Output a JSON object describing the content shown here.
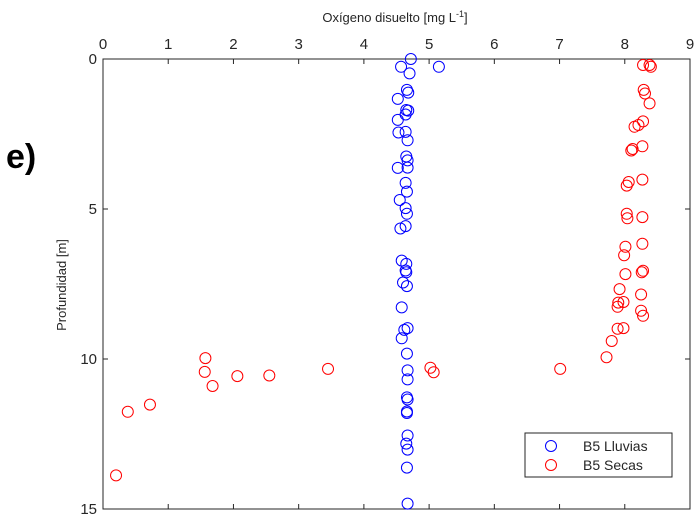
{
  "panel_label": "e)",
  "chart_data": {
    "type": "scatter",
    "xlabel": "Oxígeno disuelto [mg L",
    "xlabel_sup": "-1",
    "xlabel_end": "]",
    "ylabel": "Profundidad [m]",
    "xlim": [
      0,
      9
    ],
    "ylim": [
      0,
      15
    ],
    "y_reversed": true,
    "x_axis_position": "top",
    "x_ticks": [
      "0",
      "1",
      "2",
      "3",
      "4",
      "5",
      "6",
      "7",
      "8",
      "9"
    ],
    "y_ticks": [
      "0",
      "5",
      "10",
      "15"
    ],
    "grid": false,
    "legend_position": "bottom-right",
    "colors": {
      "B5 Lluvias": "#0000ff",
      "B5 Secas": "#ff0000"
    },
    "series": [
      {
        "name": "B5 Lluvias",
        "points": [
          [
            4.72,
            0.0
          ],
          [
            4.57,
            0.26
          ],
          [
            5.15,
            0.26
          ],
          [
            4.7,
            0.48
          ],
          [
            4.66,
            1.03
          ],
          [
            4.68,
            1.12
          ],
          [
            4.52,
            1.33
          ],
          [
            4.65,
            1.7
          ],
          [
            4.68,
            1.72
          ],
          [
            4.64,
            1.85
          ],
          [
            4.52,
            2.03
          ],
          [
            4.64,
            2.43
          ],
          [
            4.53,
            2.45
          ],
          [
            4.67,
            2.71
          ],
          [
            4.65,
            3.25
          ],
          [
            4.67,
            3.38
          ],
          [
            4.67,
            3.62
          ],
          [
            4.52,
            3.63
          ],
          [
            4.64,
            4.13
          ],
          [
            4.66,
            4.42
          ],
          [
            4.55,
            4.7
          ],
          [
            4.64,
            4.97
          ],
          [
            4.66,
            5.16
          ],
          [
            4.64,
            5.57
          ],
          [
            4.56,
            5.65
          ],
          [
            4.58,
            6.72
          ],
          [
            4.65,
            6.83
          ],
          [
            4.64,
            7.05
          ],
          [
            4.65,
            7.11
          ],
          [
            4.6,
            7.45
          ],
          [
            4.66,
            7.57
          ],
          [
            4.58,
            8.28
          ],
          [
            4.67,
            8.97
          ],
          [
            4.62,
            9.03
          ],
          [
            4.58,
            9.31
          ],
          [
            4.66,
            9.82
          ],
          [
            4.67,
            10.38
          ],
          [
            4.67,
            10.68
          ],
          [
            4.66,
            11.28
          ],
          [
            4.67,
            11.35
          ],
          [
            4.66,
            11.75
          ],
          [
            4.66,
            11.8
          ],
          [
            4.67,
            12.55
          ],
          [
            4.65,
            12.82
          ],
          [
            4.67,
            13.02
          ],
          [
            4.66,
            13.62
          ],
          [
            4.67,
            14.82
          ]
        ]
      },
      {
        "name": "B5 Secas",
        "points": [
          [
            8.28,
            0.2
          ],
          [
            8.38,
            0.2
          ],
          [
            8.4,
            0.26
          ],
          [
            8.29,
            1.03
          ],
          [
            8.31,
            1.15
          ],
          [
            8.38,
            1.48
          ],
          [
            8.28,
            2.08
          ],
          [
            8.21,
            2.2
          ],
          [
            8.15,
            2.26
          ],
          [
            8.27,
            2.91
          ],
          [
            8.12,
            3.0
          ],
          [
            8.1,
            3.05
          ],
          [
            8.27,
            4.02
          ],
          [
            8.06,
            4.1
          ],
          [
            8.03,
            4.22
          ],
          [
            8.03,
            5.16
          ],
          [
            8.04,
            5.31
          ],
          [
            8.27,
            5.27
          ],
          [
            8.27,
            6.16
          ],
          [
            8.01,
            6.26
          ],
          [
            7.99,
            6.54
          ],
          [
            8.28,
            7.06
          ],
          [
            8.26,
            7.11
          ],
          [
            8.01,
            7.17
          ],
          [
            7.92,
            7.67
          ],
          [
            8.25,
            7.85
          ],
          [
            7.98,
            8.1
          ],
          [
            7.9,
            8.12
          ],
          [
            7.89,
            8.26
          ],
          [
            8.25,
            8.39
          ],
          [
            8.28,
            8.56
          ],
          [
            7.98,
            8.97
          ],
          [
            7.89,
            8.99
          ],
          [
            7.8,
            9.4
          ],
          [
            7.72,
            9.94
          ],
          [
            1.57,
            9.97
          ],
          [
            5.02,
            10.29
          ],
          [
            3.45,
            10.33
          ],
          [
            7.01,
            10.33
          ],
          [
            1.56,
            10.43
          ],
          [
            5.07,
            10.44
          ],
          [
            2.06,
            10.57
          ],
          [
            2.55,
            10.55
          ],
          [
            1.68,
            10.9
          ],
          [
            0.72,
            11.52
          ],
          [
            0.38,
            11.76
          ],
          [
            0.2,
            13.88
          ]
        ]
      }
    ]
  }
}
